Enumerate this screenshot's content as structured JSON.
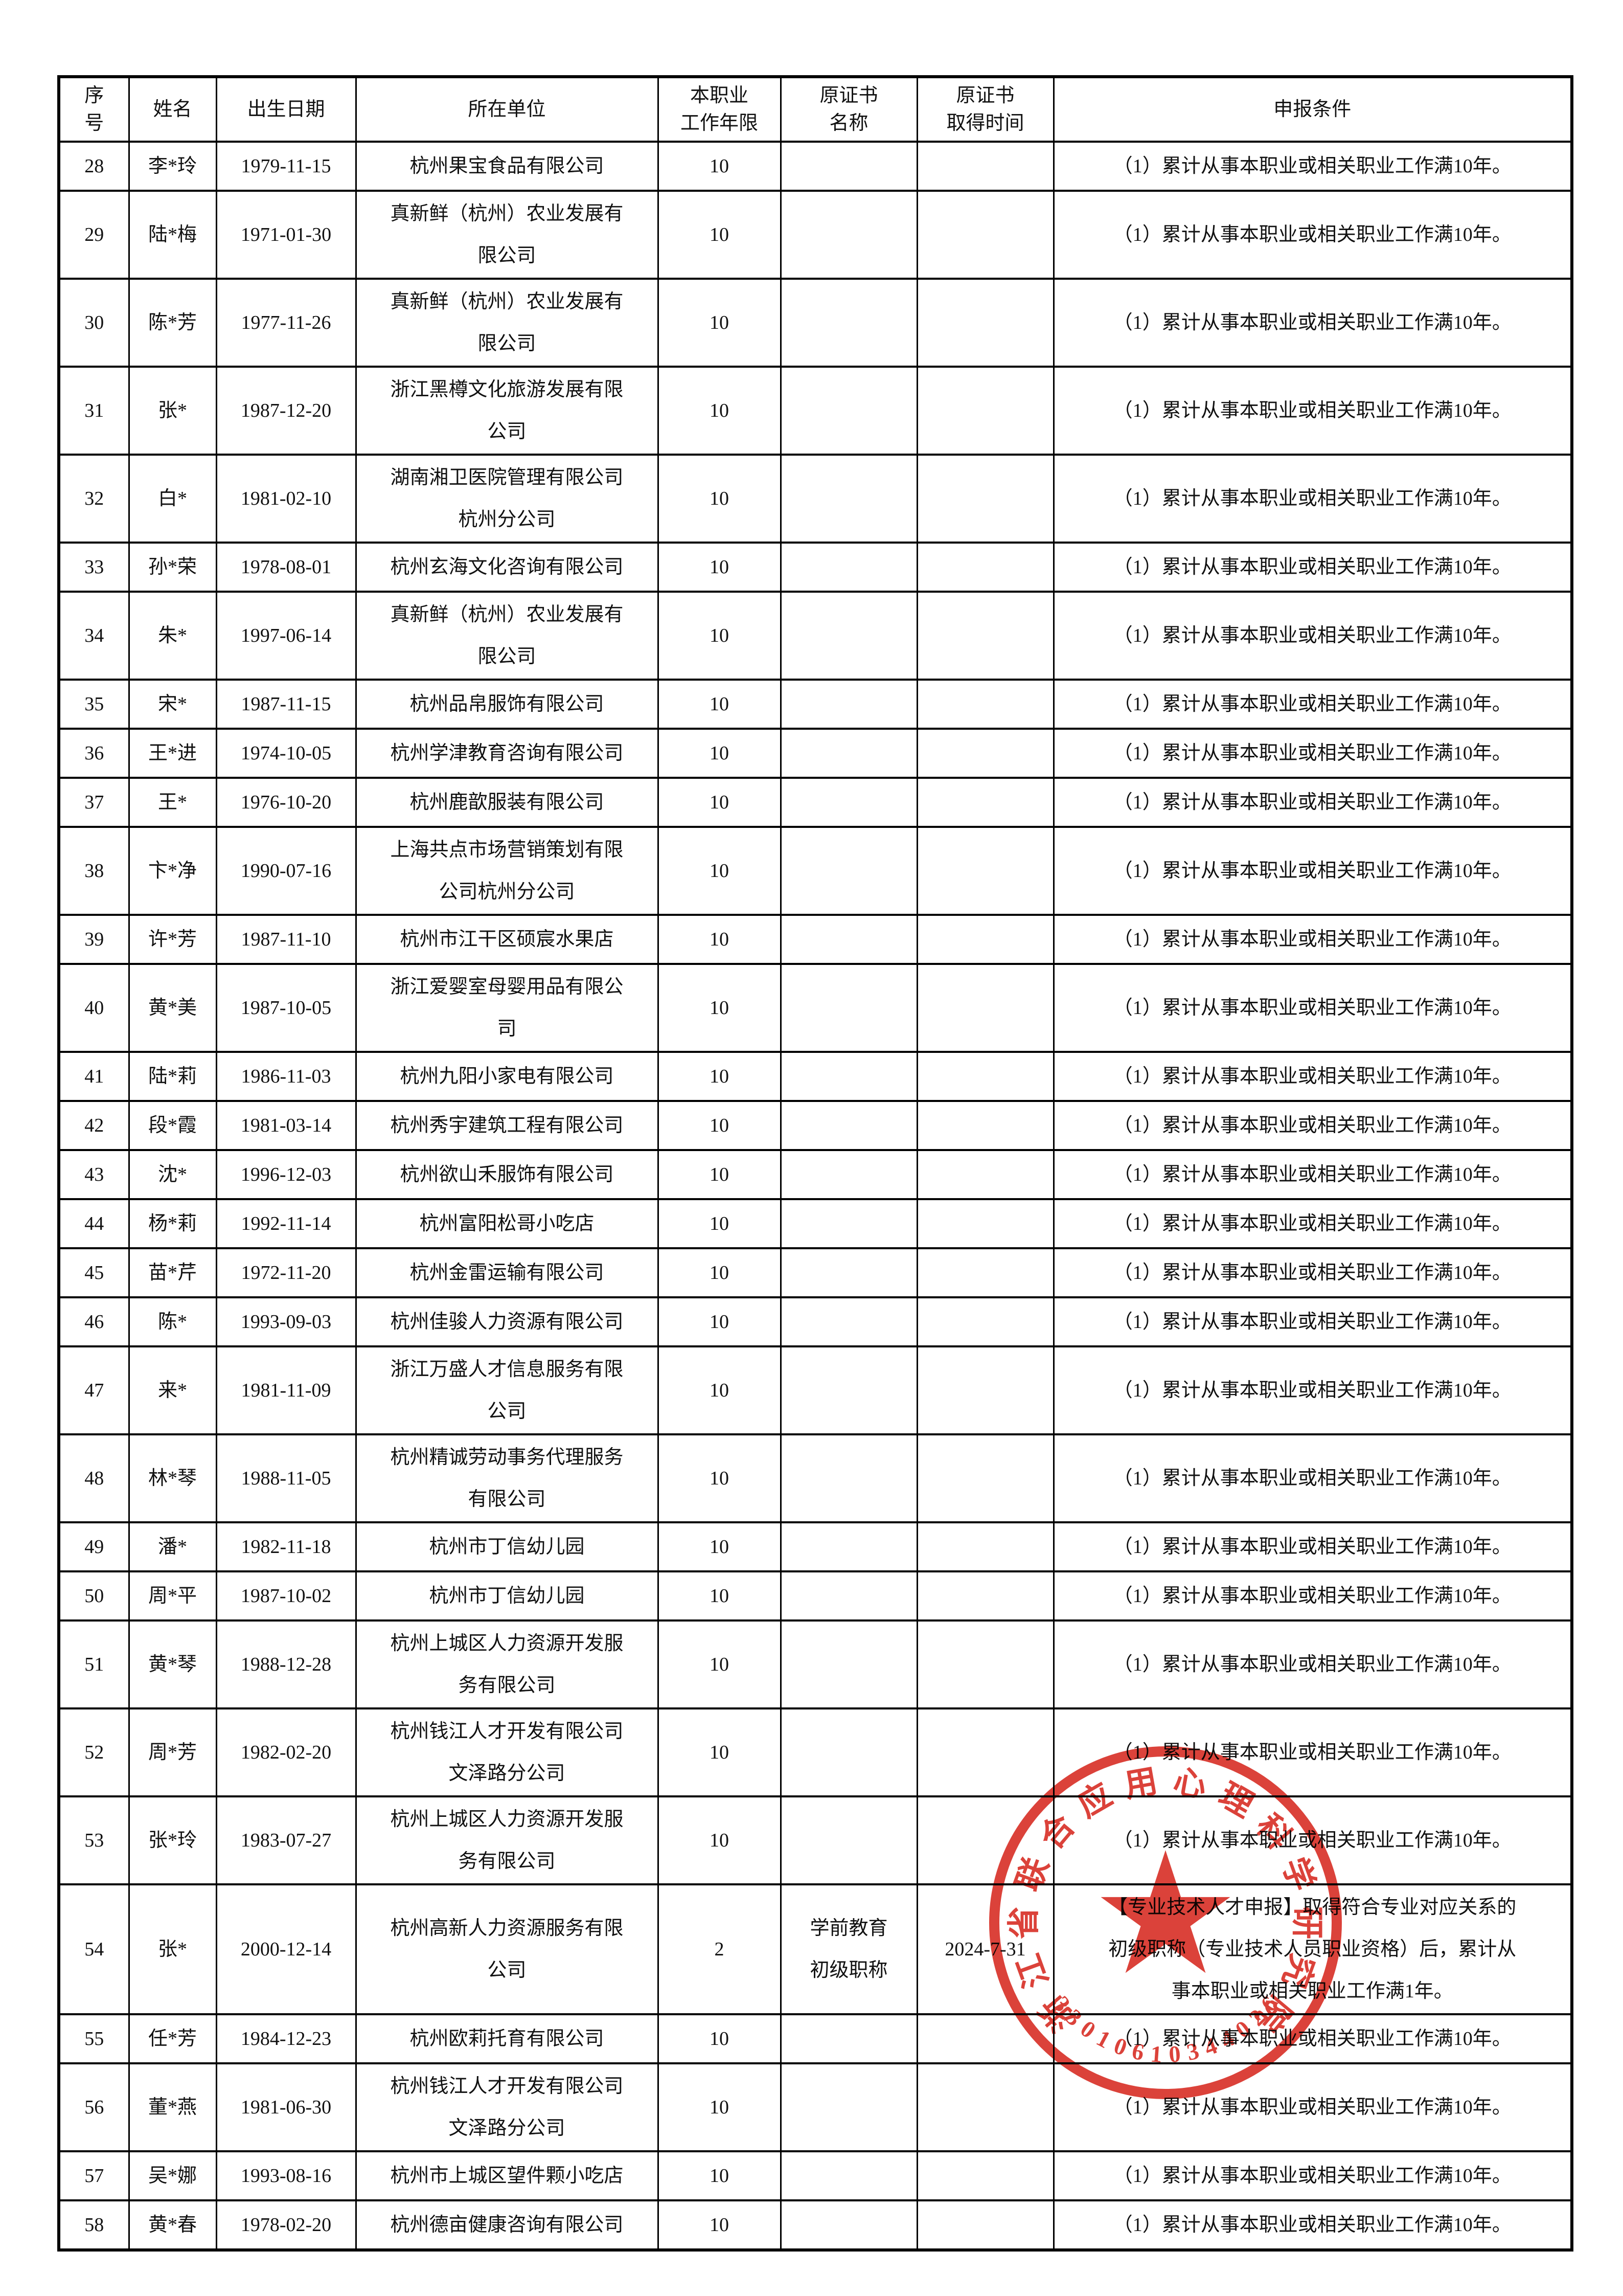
{
  "table": {
    "headers": [
      "序\n号",
      "姓名",
      "出生日期",
      "所在单位",
      "本职业\n工作年限",
      "原证书\n名称",
      "原证书\n取得时间",
      "申报条件"
    ],
    "rows": [
      {
        "no": "28",
        "name": "李*玲",
        "birth": "1979-11-15",
        "company": "杭州果宝食品有限公司",
        "years": "10",
        "cert": "",
        "cert_time": "",
        "condition": "（1）累计从事本职业或相关职业工作满10年。"
      },
      {
        "no": "29",
        "name": "陆*梅",
        "birth": "1971-01-30",
        "company": "真新鲜（杭州）农业发展有\n限公司",
        "years": "10",
        "cert": "",
        "cert_time": "",
        "condition": "（1）累计从事本职业或相关职业工作满10年。"
      },
      {
        "no": "30",
        "name": "陈*芳",
        "birth": "1977-11-26",
        "company": "真新鲜（杭州）农业发展有\n限公司",
        "years": "10",
        "cert": "",
        "cert_time": "",
        "condition": "（1）累计从事本职业或相关职业工作满10年。"
      },
      {
        "no": "31",
        "name": "张*",
        "birth": "1987-12-20",
        "company": "浙江黑樽文化旅游发展有限\n公司",
        "years": "10",
        "cert": "",
        "cert_time": "",
        "condition": "（1）累计从事本职业或相关职业工作满10年。"
      },
      {
        "no": "32",
        "name": "白*",
        "birth": "1981-02-10",
        "company": "湖南湘卫医院管理有限公司\n杭州分公司",
        "years": "10",
        "cert": "",
        "cert_time": "",
        "condition": "（1）累计从事本职业或相关职业工作满10年。"
      },
      {
        "no": "33",
        "name": "孙*荣",
        "birth": "1978-08-01",
        "company": "杭州玄海文化咨询有限公司",
        "years": "10",
        "cert": "",
        "cert_time": "",
        "condition": "（1）累计从事本职业或相关职业工作满10年。"
      },
      {
        "no": "34",
        "name": "朱*",
        "birth": "1997-06-14",
        "company": "真新鲜（杭州）农业发展有\n限公司",
        "years": "10",
        "cert": "",
        "cert_time": "",
        "condition": "（1）累计从事本职业或相关职业工作满10年。"
      },
      {
        "no": "35",
        "name": "宋*",
        "birth": "1987-11-15",
        "company": "杭州品帛服饰有限公司",
        "years": "10",
        "cert": "",
        "cert_time": "",
        "condition": "（1）累计从事本职业或相关职业工作满10年。"
      },
      {
        "no": "36",
        "name": "王*进",
        "birth": "1974-10-05",
        "company": "杭州学津教育咨询有限公司",
        "years": "10",
        "cert": "",
        "cert_time": "",
        "condition": "（1）累计从事本职业或相关职业工作满10年。"
      },
      {
        "no": "37",
        "name": "王*",
        "birth": "1976-10-20",
        "company": "杭州鹿歆服装有限公司",
        "years": "10",
        "cert": "",
        "cert_time": "",
        "condition": "（1）累计从事本职业或相关职业工作满10年。"
      },
      {
        "no": "38",
        "name": "卞*净",
        "birth": "1990-07-16",
        "company": "上海共点市场营销策划有限\n公司杭州分公司",
        "years": "10",
        "cert": "",
        "cert_time": "",
        "condition": "（1）累计从事本职业或相关职业工作满10年。"
      },
      {
        "no": "39",
        "name": "许*芳",
        "birth": "1987-11-10",
        "company": "杭州市江干区硕宸水果店",
        "years": "10",
        "cert": "",
        "cert_time": "",
        "condition": "（1）累计从事本职业或相关职业工作满10年。"
      },
      {
        "no": "40",
        "name": "黄*美",
        "birth": "1987-10-05",
        "company": "浙江爱婴室母婴用品有限公\n司",
        "years": "10",
        "cert": "",
        "cert_time": "",
        "condition": "（1）累计从事本职业或相关职业工作满10年。"
      },
      {
        "no": "41",
        "name": "陆*莉",
        "birth": "1986-11-03",
        "company": "杭州九阳小家电有限公司",
        "years": "10",
        "cert": "",
        "cert_time": "",
        "condition": "（1）累计从事本职业或相关职业工作满10年。"
      },
      {
        "no": "42",
        "name": "段*霞",
        "birth": "1981-03-14",
        "company": "杭州秀宇建筑工程有限公司",
        "years": "10",
        "cert": "",
        "cert_time": "",
        "condition": "（1）累计从事本职业或相关职业工作满10年。"
      },
      {
        "no": "43",
        "name": "沈*",
        "birth": "1996-12-03",
        "company": "杭州欲山禾服饰有限公司",
        "years": "10",
        "cert": "",
        "cert_time": "",
        "condition": "（1）累计从事本职业或相关职业工作满10年。"
      },
      {
        "no": "44",
        "name": "杨*莉",
        "birth": "1992-11-14",
        "company": "杭州富阳松哥小吃店",
        "years": "10",
        "cert": "",
        "cert_time": "",
        "condition": "（1）累计从事本职业或相关职业工作满10年。"
      },
      {
        "no": "45",
        "name": "苗*芹",
        "birth": "1972-11-20",
        "company": "杭州金雷运输有限公司",
        "years": "10",
        "cert": "",
        "cert_time": "",
        "condition": "（1）累计从事本职业或相关职业工作满10年。"
      },
      {
        "no": "46",
        "name": "陈*",
        "birth": "1993-09-03",
        "company": "杭州佳骏人力资源有限公司",
        "years": "10",
        "cert": "",
        "cert_time": "",
        "condition": "（1）累计从事本职业或相关职业工作满10年。"
      },
      {
        "no": "47",
        "name": "来*",
        "birth": "1981-11-09",
        "company": "浙江万盛人才信息服务有限\n公司",
        "years": "10",
        "cert": "",
        "cert_time": "",
        "condition": "（1）累计从事本职业或相关职业工作满10年。"
      },
      {
        "no": "48",
        "name": "林*琴",
        "birth": "1988-11-05",
        "company": "杭州精诚劳动事务代理服务\n有限公司",
        "years": "10",
        "cert": "",
        "cert_time": "",
        "condition": "（1）累计从事本职业或相关职业工作满10年。"
      },
      {
        "no": "49",
        "name": "潘*",
        "birth": "1982-11-18",
        "company": "杭州市丁信幼儿园",
        "years": "10",
        "cert": "",
        "cert_time": "",
        "condition": "（1）累计从事本职业或相关职业工作满10年。"
      },
      {
        "no": "50",
        "name": "周*平",
        "birth": "1987-10-02",
        "company": "杭州市丁信幼儿园",
        "years": "10",
        "cert": "",
        "cert_time": "",
        "condition": "（1）累计从事本职业或相关职业工作满10年。"
      },
      {
        "no": "51",
        "name": "黄*琴",
        "birth": "1988-12-28",
        "company": "杭州上城区人力资源开发服\n务有限公司",
        "years": "10",
        "cert": "",
        "cert_time": "",
        "condition": "（1）累计从事本职业或相关职业工作满10年。"
      },
      {
        "no": "52",
        "name": "周*芳",
        "birth": "1982-02-20",
        "company": "杭州钱江人才开发有限公司\n文泽路分公司",
        "years": "10",
        "cert": "",
        "cert_time": "",
        "condition": "（1）累计从事本职业或相关职业工作满10年。"
      },
      {
        "no": "53",
        "name": "张*玲",
        "birth": "1983-07-27",
        "company": "杭州上城区人力资源开发服\n务有限公司",
        "years": "10",
        "cert": "",
        "cert_time": "",
        "condition": "（1）累计从事本职业或相关职业工作满10年。"
      },
      {
        "no": "54",
        "name": "张*",
        "birth": "2000-12-14",
        "company": "杭州高新人力资源服务有限\n公司",
        "years": "2",
        "cert": "学前教育\n初级职称",
        "cert_time": "2024-7-31",
        "condition": "【专业技术人才申报】取得符合专业对应关系的\n初级职称（专业技术人员职业资格）后，累计从\n事本职业或相关职业工作满1年。"
      },
      {
        "no": "55",
        "name": "任*芳",
        "birth": "1984-12-23",
        "company": "杭州欧莉托育有限公司",
        "years": "10",
        "cert": "",
        "cert_time": "",
        "condition": "（1）累计从事本职业或相关职业工作满10年。"
      },
      {
        "no": "56",
        "name": "董*燕",
        "birth": "1981-06-30",
        "company": "杭州钱江人才开发有限公司\n文泽路分公司",
        "years": "10",
        "cert": "",
        "cert_time": "",
        "condition": "（1）累计从事本职业或相关职业工作满10年。"
      },
      {
        "no": "57",
        "name": "吴*娜",
        "birth": "1993-08-16",
        "company": "杭州市上城区望件颗小吃店",
        "years": "10",
        "cert": "",
        "cert_time": "",
        "condition": "（1）累计从事本职业或相关职业工作满10年。"
      },
      {
        "no": "58",
        "name": "黄*春",
        "birth": "1978-02-20",
        "company": "杭州德亩健康咨询有限公司",
        "years": "10",
        "cert": "",
        "cert_time": "",
        "condition": "（1）累计从事本职业或相关职业工作满10年。"
      }
    ]
  },
  "stamp": {
    "org_name": "浙江省联合应用心理科学研究院",
    "code": "33010610344026",
    "star_icon": "★",
    "color": "#d6261c"
  }
}
